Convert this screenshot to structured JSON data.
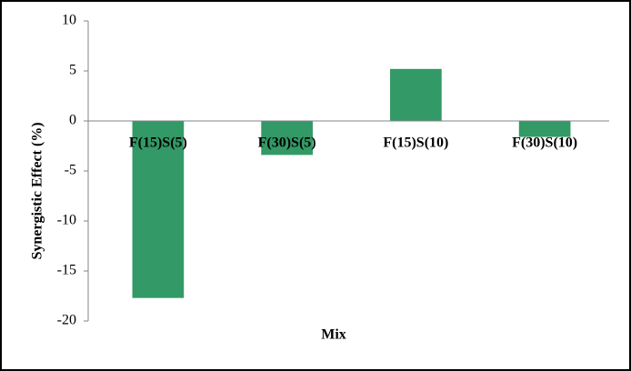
{
  "chart_data": {
    "type": "bar",
    "x_label": "Mix",
    "y_label": "Synergistic  Effect (%)",
    "categories": [
      "F(15)S(5)",
      "F(30)S(5)",
      "F(15)S(10)",
      "F(30)S(10)"
    ],
    "values": [
      -17.7,
      -3.4,
      5.2,
      -1.6
    ],
    "color": "#339966",
    "ylim": [
      -20,
      10
    ],
    "yticks": [
      -20,
      -15,
      -10,
      -5,
      0,
      5,
      10
    ],
    "grid": false
  }
}
